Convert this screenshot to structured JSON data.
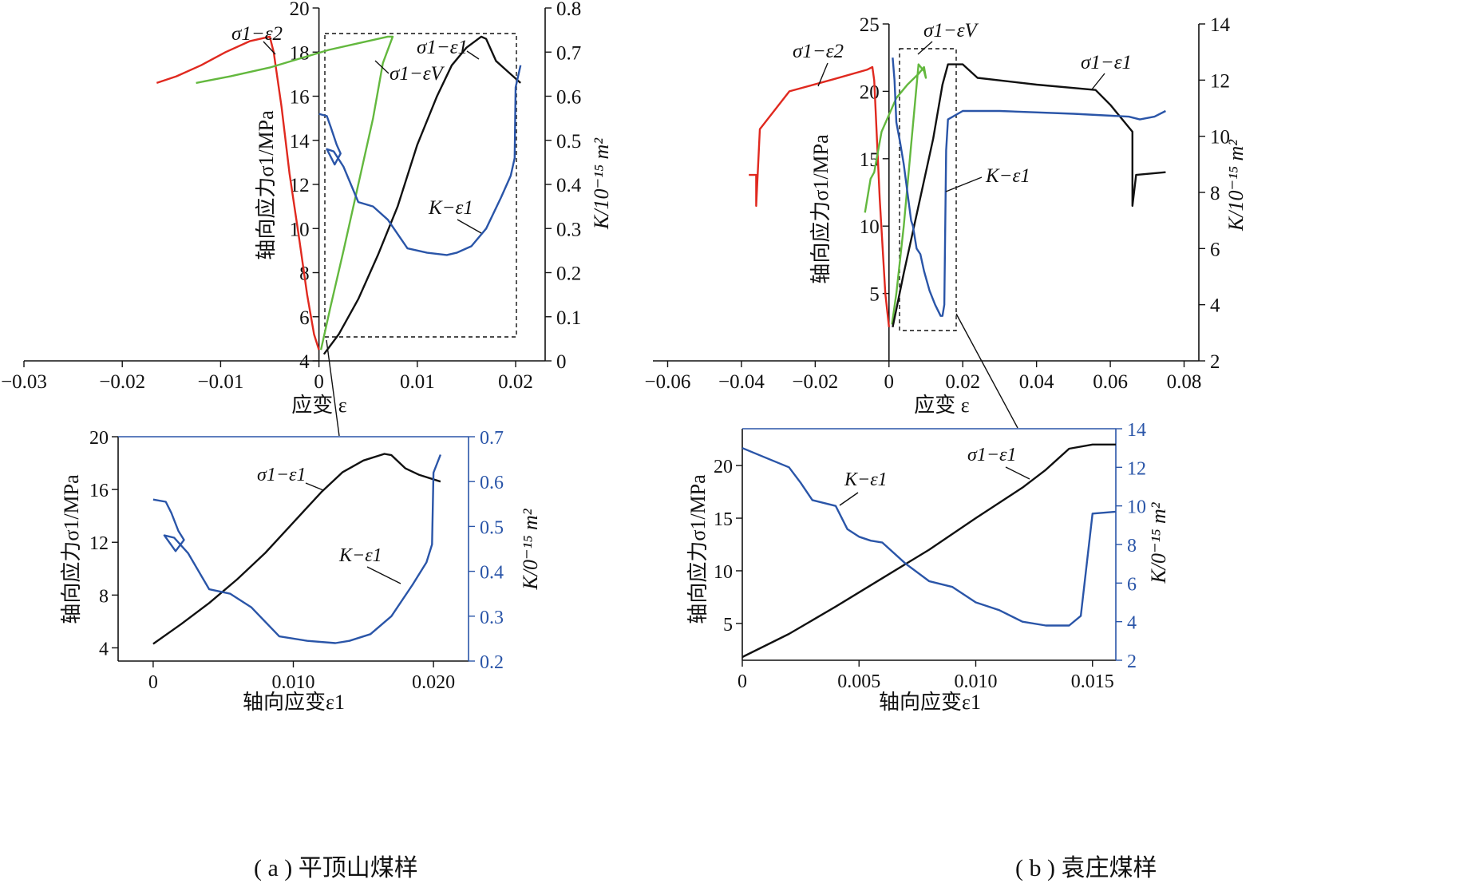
{
  "captions": [
    "( a ) 平顶山煤样",
    "( b ) 袁庄煤样"
  ],
  "colors": {
    "s1e1": "#111111",
    "s1e2": "#e0291f",
    "s1ev": "#63b83e",
    "k": "#2a55a8",
    "inset_frame": "#2a55a8"
  },
  "chart_data": [
    {
      "id": "a-main",
      "type": "line",
      "title": "",
      "xlabel": "应变 ε",
      "ylabel": "轴向应力σ1/MPa",
      "y2label": "K/10⁻¹⁵ m²",
      "xlim": [
        -0.03,
        0.023
      ],
      "ylim": [
        4,
        20
      ],
      "y2lim": [
        0,
        0.8
      ],
      "xticks": [
        "-0.03",
        "-0.02",
        "-0.01",
        "0",
        "0.01",
        "0.02"
      ],
      "yticks": [
        "4",
        "6",
        "8",
        "10",
        "12",
        "14",
        "16",
        "18",
        "20"
      ],
      "y2ticks": [
        "0",
        "0.1",
        "0.2",
        "0.3",
        "0.4",
        "0.5",
        "0.6",
        "0.7",
        "0.8"
      ],
      "series": [
        {
          "name": "σ1−ε2",
          "axis": "y",
          "x": [
            -0.0165,
            -0.0145,
            -0.012,
            -0.0095,
            -0.007,
            -0.005,
            -0.0046,
            -0.0038,
            -0.003,
            -0.002,
            -0.0012,
            -0.0005,
            0
          ],
          "y": [
            16.6,
            16.9,
            17.4,
            18.0,
            18.5,
            18.7,
            18.0,
            15.5,
            12.5,
            9.5,
            7.0,
            5.2,
            4.5
          ]
        },
        {
          "name": "σ1−εV",
          "axis": "y",
          "x": [
            -0.0125,
            -0.009,
            -0.005,
            -0.002,
            0.001,
            0.004,
            0.007,
            0.0075,
            0.0065,
            0.0055,
            0.004,
            0.0025,
            0.0012,
            0.0002
          ],
          "y": [
            16.6,
            16.9,
            17.3,
            17.7,
            18.1,
            18.4,
            18.7,
            18.7,
            17.5,
            15.0,
            12.0,
            9.0,
            6.5,
            4.5
          ]
        },
        {
          "name": "σ1−ε1",
          "axis": "y",
          "x": [
            0.0005,
            0.002,
            0.004,
            0.006,
            0.008,
            0.01,
            0.012,
            0.0135,
            0.015,
            0.0165,
            0.017,
            0.018,
            0.019,
            0.0205
          ],
          "y": [
            4.3,
            5.2,
            6.8,
            8.8,
            11.0,
            13.8,
            16.0,
            17.4,
            18.2,
            18.7,
            18.6,
            17.6,
            17.2,
            16.6
          ]
        },
        {
          "name": "K−ε1",
          "axis": "y2",
          "x": [
            0,
            0.0008,
            0.0012,
            0.0018,
            0.0022,
            0.0016,
            0.0008,
            0.0015,
            0.0025,
            0.004,
            0.0055,
            0.007,
            0.009,
            0.011,
            0.013,
            0.014,
            0.0155,
            0.017,
            0.0185,
            0.0195,
            0.0199,
            0.02,
            0.0205
          ],
          "y": [
            0.56,
            0.555,
            0.53,
            0.49,
            0.47,
            0.445,
            0.48,
            0.475,
            0.44,
            0.36,
            0.35,
            0.32,
            0.255,
            0.245,
            0.24,
            0.245,
            0.26,
            0.3,
            0.37,
            0.42,
            0.46,
            0.62,
            0.67
          ]
        }
      ],
      "annotations": [
        "σ1−ε2",
        "σ1−εV",
        "σ1−ε1",
        "K−ε1"
      ]
    },
    {
      "id": "a-inset",
      "type": "line",
      "title": "",
      "xlabel": "轴向应变ε1",
      "ylabel": "轴向应力σ1/MPa",
      "y2label": "K/0⁻¹⁵ m²",
      "xlim": [
        -0.0025,
        0.0225
      ],
      "ylim": [
        3,
        20
      ],
      "y2lim": [
        0.2,
        0.7
      ],
      "xticks": [
        "0",
        "0.010",
        "0.020"
      ],
      "yticks": [
        "4",
        "8",
        "12",
        "16",
        "20"
      ],
      "y2ticks": [
        "0.2",
        "0.3",
        "0.4",
        "0.5",
        "0.6",
        "0.7"
      ],
      "series": [
        {
          "name": "σ1−ε1",
          "axis": "y",
          "x": [
            0,
            0.002,
            0.004,
            0.006,
            0.008,
            0.01,
            0.012,
            0.0135,
            0.015,
            0.0165,
            0.017,
            0.018,
            0.019,
            0.0205
          ],
          "y": [
            4.3,
            5.8,
            7.4,
            9.2,
            11.2,
            13.5,
            15.8,
            17.3,
            18.2,
            18.7,
            18.6,
            17.6,
            17.1,
            16.6
          ]
        },
        {
          "name": "K−ε1",
          "axis": "y2",
          "x": [
            0,
            0.0009,
            0.0013,
            0.0018,
            0.0022,
            0.0016,
            0.0008,
            0.0015,
            0.0025,
            0.004,
            0.0055,
            0.007,
            0.009,
            0.011,
            0.013,
            0.014,
            0.0155,
            0.017,
            0.0185,
            0.0195,
            0.0199,
            0.02,
            0.0205
          ],
          "y": [
            0.56,
            0.555,
            0.53,
            0.49,
            0.47,
            0.445,
            0.48,
            0.475,
            0.44,
            0.36,
            0.35,
            0.32,
            0.255,
            0.245,
            0.24,
            0.245,
            0.26,
            0.3,
            0.37,
            0.42,
            0.46,
            0.62,
            0.66
          ]
        }
      ],
      "annotations": [
        "σ1−ε1",
        "K−ε1"
      ]
    },
    {
      "id": "b-main",
      "type": "line",
      "title": "",
      "xlabel": "应变 ε",
      "ylabel": "轴向应力σ1/MPa",
      "y2label": "K/10⁻¹⁵ m²",
      "xlim": [
        -0.064,
        0.084
      ],
      "ylim": [
        0,
        25
      ],
      "y2lim": [
        2,
        14
      ],
      "xticks": [
        "-0.06",
        "-0.04",
        "-0.02",
        "0",
        "0.02",
        "0.04",
        "0.06",
        "0.08"
      ],
      "yticks": [
        "5",
        "10",
        "15",
        "20",
        "25"
      ],
      "y2ticks": [
        "2",
        "4",
        "6",
        "8",
        "10",
        "12",
        "14"
      ],
      "series": [
        {
          "name": "σ1−ε2",
          "axis": "y",
          "x": [
            -0.038,
            -0.036,
            -0.036,
            -0.035,
            -0.027,
            -0.015,
            -0.006,
            -0.0045,
            -0.004,
            -0.0025,
            -0.001,
            0
          ],
          "y": [
            13.8,
            13.8,
            11.5,
            17.2,
            20.0,
            20.9,
            21.6,
            21.8,
            20.8,
            12.0,
            5.0,
            2.5
          ]
        },
        {
          "name": "σ1−εV",
          "axis": "y",
          "x": [
            -0.0065,
            -0.005,
            -0.004,
            -0.002,
            0.002,
            0.005,
            0.008,
            0.0095,
            0.01,
            0.0095,
            0.008,
            0.006,
            0.004,
            0.002,
            0.0008
          ],
          "y": [
            11.0,
            13.5,
            14.0,
            17.0,
            19.5,
            20.5,
            21.3,
            21.8,
            21.0,
            21.5,
            22.0,
            16.0,
            10.0,
            5.0,
            2.7
          ]
        },
        {
          "name": "σ1−ε1",
          "axis": "y",
          "x": [
            0.001,
            0.004,
            0.008,
            0.012,
            0.0145,
            0.016,
            0.02,
            0.024,
            0.04,
            0.056,
            0.06,
            0.066,
            0.066,
            0.067,
            0.075
          ],
          "y": [
            2.5,
            6.5,
            11.5,
            16.5,
            20.5,
            22.0,
            22.0,
            21.0,
            20.5,
            20.1,
            19.0,
            17.0,
            11.5,
            13.8,
            14.0
          ]
        },
        {
          "name": "K−ε1",
          "axis": "y2",
          "x": [
            0.001,
            0.0015,
            0.002,
            0.003,
            0.004,
            0.005,
            0.006,
            0.0065,
            0.0075,
            0.0085,
            0.0095,
            0.011,
            0.0125,
            0.014,
            0.0145,
            0.015,
            0.0155,
            0.016,
            0.02,
            0.03,
            0.05,
            0.065,
            0.068,
            0.072,
            0.075
          ],
          "y": [
            12.8,
            12.0,
            10.5,
            9.8,
            9.0,
            8.0,
            7.0,
            6.8,
            6.0,
            5.8,
            5.2,
            4.5,
            4.0,
            3.6,
            3.6,
            4.0,
            9.5,
            10.6,
            10.9,
            10.9,
            10.8,
            10.7,
            10.6,
            10.7,
            10.9
          ]
        }
      ],
      "annotations": [
        "σ1−ε2",
        "σ1−εV",
        "σ1−ε1",
        "K−ε1"
      ]
    },
    {
      "id": "b-inset",
      "type": "line",
      "title": "",
      "xlabel": "轴向应变ε1",
      "ylabel": "轴向应力σ1/MPa",
      "y2label": "K/0⁻¹⁵ m²",
      "xlim": [
        0,
        0.016
      ],
      "ylim": [
        1.5,
        23.5
      ],
      "y2lim": [
        2,
        14
      ],
      "xticks": [
        "0",
        "0.005",
        "0.010",
        "0.015"
      ],
      "yticks": [
        "5",
        "10",
        "15",
        "20"
      ],
      "y2ticks": [
        "2",
        "4",
        "6",
        "8",
        "10",
        "12",
        "14"
      ],
      "series": [
        {
          "name": "σ1−ε1",
          "axis": "y",
          "x": [
            0,
            0.002,
            0.004,
            0.006,
            0.008,
            0.01,
            0.012,
            0.013,
            0.0135,
            0.014,
            0.015,
            0.016
          ],
          "y": [
            1.8,
            4.0,
            6.6,
            9.3,
            12.0,
            15.0,
            17.9,
            19.6,
            20.6,
            21.6,
            22.0,
            22.0
          ]
        },
        {
          "name": "K−ε1",
          "axis": "y2",
          "x": [
            0,
            0.001,
            0.002,
            0.0025,
            0.003,
            0.004,
            0.0045,
            0.005,
            0.0055,
            0.006,
            0.007,
            0.008,
            0.009,
            0.01,
            0.011,
            0.012,
            0.013,
            0.014,
            0.0145,
            0.015,
            0.016
          ],
          "y": [
            13.0,
            12.5,
            12.0,
            11.2,
            10.3,
            10.0,
            8.8,
            8.4,
            8.2,
            8.1,
            7.0,
            6.1,
            5.8,
            5.0,
            4.6,
            4.0,
            3.8,
            3.8,
            4.3,
            9.6,
            9.7
          ]
        }
      ],
      "annotations": [
        "σ1−ε1",
        "K−ε1"
      ]
    }
  ]
}
